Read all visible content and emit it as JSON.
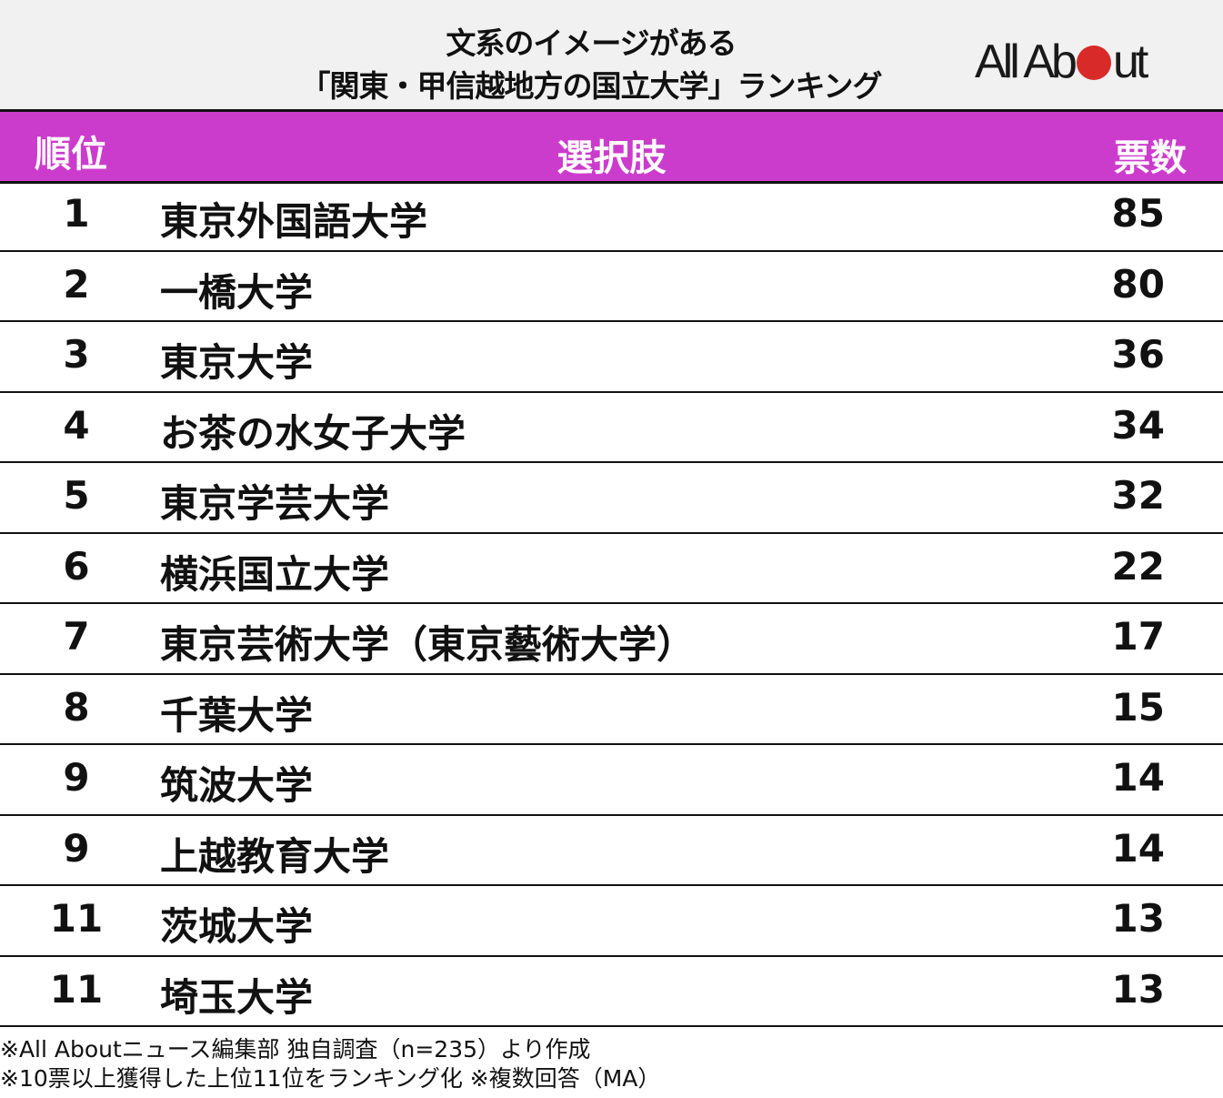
{
  "title": {
    "line1": "文系のイメージがある",
    "line2": "「関東・甲信越地方の国立大学」ランキング"
  },
  "logo": {
    "left": "All Ab",
    "right": "ut",
    "dot_color": "#d82a28"
  },
  "header": {
    "rank": "順位",
    "choice": "選択肢",
    "votes": "票数",
    "bg_color": "#cc3ccc"
  },
  "rows": [
    {
      "rank": "1",
      "name": "東京外国語大学",
      "votes": "85"
    },
    {
      "rank": "2",
      "name": "一橋大学",
      "votes": "80"
    },
    {
      "rank": "3",
      "name": "東京大学",
      "votes": "36"
    },
    {
      "rank": "4",
      "name": "お茶の水女子大学",
      "votes": "34"
    },
    {
      "rank": "5",
      "name": "東京学芸大学",
      "votes": "32"
    },
    {
      "rank": "6",
      "name": "横浜国立大学",
      "votes": "22"
    },
    {
      "rank": "7",
      "name": "東京芸術大学（東京藝術大学）",
      "votes": "17"
    },
    {
      "rank": "8",
      "name": "千葉大学",
      "votes": "15"
    },
    {
      "rank": "9",
      "name": "筑波大学",
      "votes": "14"
    },
    {
      "rank": "9",
      "name": "上越教育大学",
      "votes": "14"
    },
    {
      "rank": "11",
      "name": "茨城大学",
      "votes": "13"
    },
    {
      "rank": "11",
      "name": "埼玉大学",
      "votes": "13"
    }
  ],
  "notes": {
    "line1": "※All Aboutニュース編集部 独自調査（n=235）より作成",
    "line2": "※10票以上獲得した上位11位をランキング化 ※複数回答（MA）"
  },
  "chart_data": {
    "type": "table",
    "title": "文系のイメージがある「関東・甲信越地方の国立大学」ランキング",
    "columns": [
      "順位",
      "選択肢",
      "票数"
    ],
    "categories": [
      "東京外国語大学",
      "一橋大学",
      "東京大学",
      "お茶の水女子大学",
      "東京学芸大学",
      "横浜国立大学",
      "東京芸術大学（東京藝術大学）",
      "千葉大学",
      "筑波大学",
      "上越教育大学",
      "茨城大学",
      "埼玉大学"
    ],
    "ranks": [
      1,
      2,
      3,
      4,
      5,
      6,
      7,
      8,
      9,
      9,
      11,
      11
    ],
    "values": [
      85,
      80,
      36,
      34,
      32,
      22,
      17,
      15,
      14,
      14,
      13,
      13
    ],
    "annotations": [
      "※All Aboutニュース編集部 独自調査（n=235）より作成",
      "※10票以上獲得した上位11位をランキング化 ※複数回答（MA）"
    ]
  }
}
